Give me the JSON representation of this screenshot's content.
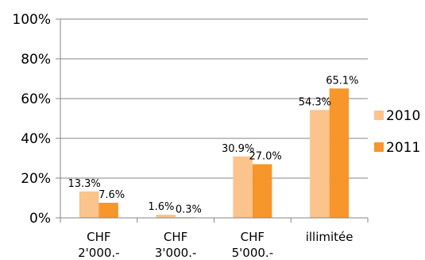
{
  "chart_data": {
    "type": "bar",
    "categories": [
      [
        "CHF",
        "2'000.-"
      ],
      [
        "CHF",
        "3'000.-"
      ],
      [
        "CHF",
        "5'000.-"
      ],
      [
        "illimitée"
      ]
    ],
    "series": [
      {
        "name": "2010",
        "values": [
          13.3,
          1.6,
          30.9,
          54.3
        ],
        "labels": [
          "13.3%",
          "1.6%",
          "30.9%",
          "54.3%"
        ],
        "color": "#fac48c"
      },
      {
        "name": "2011",
        "values": [
          7.6,
          0.3,
          27.0,
          65.1
        ],
        "labels": [
          "7.6%",
          "0.3%",
          "27.0%",
          "65.1%"
        ],
        "color": "#f7962b"
      }
    ],
    "yticks": [
      "0%",
      "20%",
      "40%",
      "60%",
      "80%",
      "100%"
    ],
    "ylim": [
      0,
      100
    ],
    "grid": true,
    "grid_color": "#868686",
    "legend_position": "right",
    "title": "",
    "xlabel": "",
    "ylabel": ""
  }
}
